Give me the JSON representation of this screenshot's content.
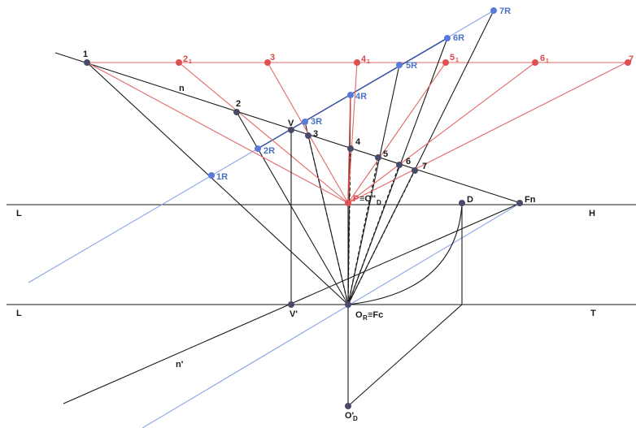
{
  "labels": {
    "p1": "1",
    "p2": "2",
    "p3": "3",
    "p4": "4",
    "p5": "5",
    "p6": "6",
    "p7": "7",
    "r2": "2",
    "r3": "3",
    "r4": "4",
    "r5": "5",
    "r6": "6",
    "r7": "7",
    "r1R": "1R",
    "r2R": "2R",
    "r3R": "3R",
    "r4R": "4R",
    "r5R": "5R",
    "r6R": "6R",
    "r7R": "7R",
    "n": "n",
    "n_prime": "n'",
    "V": "V",
    "V_prime": "V'",
    "P": "P",
    "O_D_second": "≡O\"",
    "D": "D",
    "Fn": "Fn",
    "H": "H",
    "T": "T",
    "L_top": "L",
    "L_bottom": "L",
    "O_R": "O",
    "Fc": "≡Fc",
    "O_D_prime": "O'"
  },
  "subscripts": {
    "red_index": "1",
    "D_sub": "D",
    "R_sub": "R"
  },
  "colors": {
    "black": "#1a1a1a",
    "red": "#e06a6a",
    "blue": "#8aa4e8",
    "point_fill": "#4a4a6a",
    "red_point_fill": "#e05050",
    "blue_point_fill": "#5a7ad8"
  }
}
